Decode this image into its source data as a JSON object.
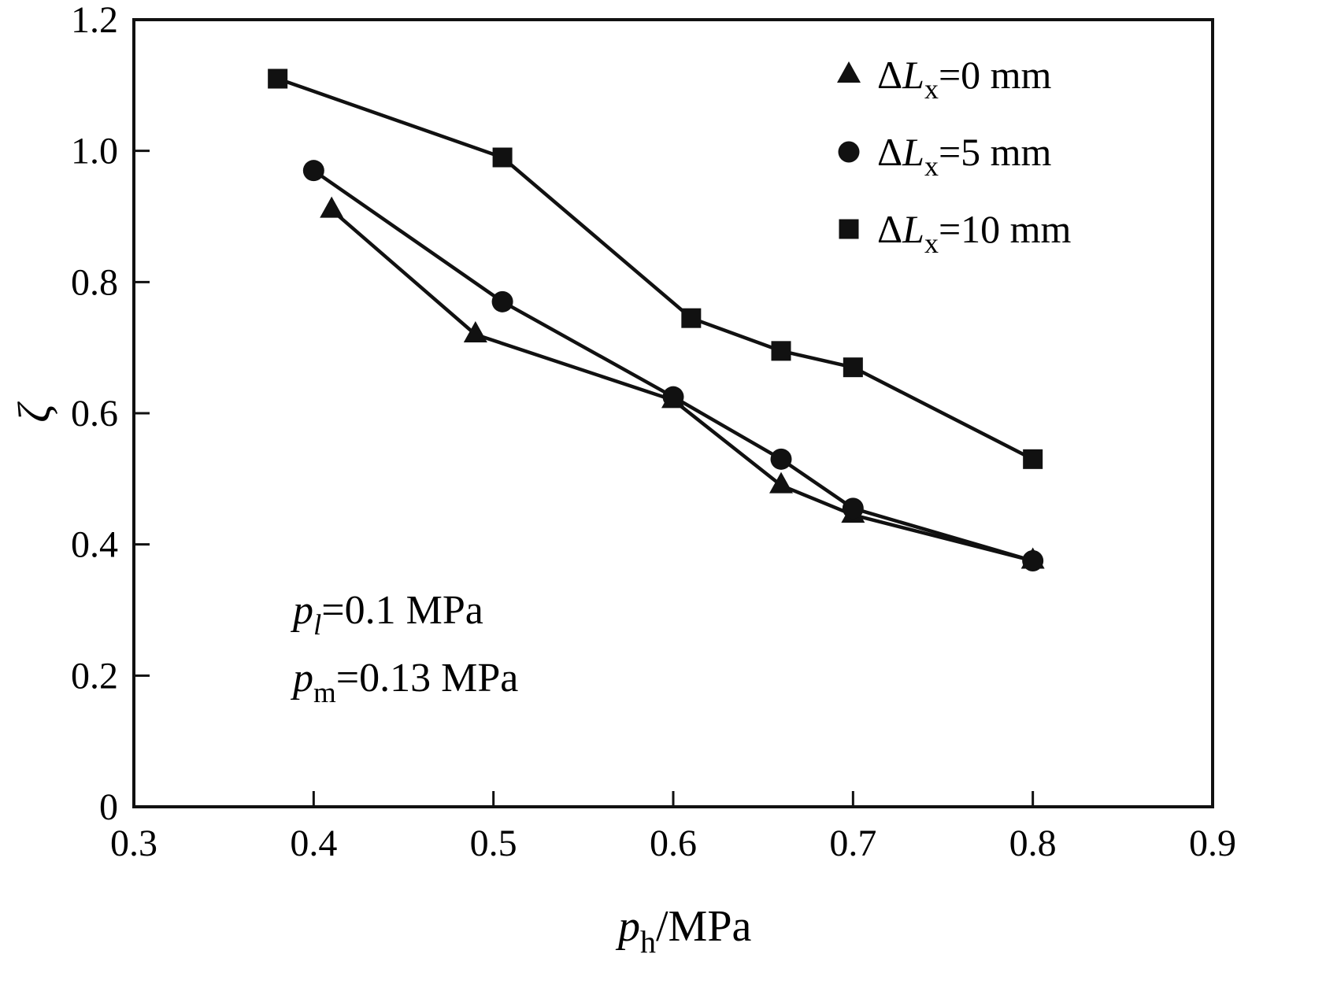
{
  "chart_data": {
    "type": "line",
    "title": "",
    "xlabel": {
      "pre": "p",
      "sub": "h",
      "post": "/MPa"
    },
    "ylabel": "ζ",
    "xlim": [
      0.3,
      0.9
    ],
    "ylim": [
      0,
      1.2
    ],
    "xticks": [
      0.3,
      0.4,
      0.5,
      0.6,
      0.7,
      0.8,
      0.9
    ],
    "yticks": [
      0,
      0.2,
      0.4,
      0.6,
      0.8,
      1.0,
      1.2
    ],
    "xtick_labels": [
      "0.3",
      "0.4",
      "0.5",
      "0.6",
      "0.7",
      "0.8",
      "0.9"
    ],
    "ytick_labels": [
      "0",
      "0.2",
      "0.4",
      "0.6",
      "0.8",
      "1.0",
      "1.2"
    ],
    "grid": false,
    "legend_position": "top-right-inside",
    "series": [
      {
        "name": "ΔLx=0 mm",
        "marker": "triangle",
        "label": {
          "pre": "Δ",
          "italic": "L",
          "sub": "x",
          "post": "=0 mm"
        },
        "points": [
          [
            0.41,
            0.91
          ],
          [
            0.49,
            0.72
          ],
          [
            0.6,
            0.62
          ],
          [
            0.66,
            0.49
          ],
          [
            0.7,
            0.445
          ],
          [
            0.8,
            0.375
          ]
        ]
      },
      {
        "name": "ΔLx=5 mm",
        "marker": "circle",
        "label": {
          "pre": "Δ",
          "italic": "L",
          "sub": "x",
          "post": "=5 mm"
        },
        "points": [
          [
            0.4,
            0.97
          ],
          [
            0.505,
            0.77
          ],
          [
            0.6,
            0.625
          ],
          [
            0.66,
            0.53
          ],
          [
            0.7,
            0.455
          ],
          [
            0.8,
            0.375
          ]
        ]
      },
      {
        "name": "ΔLx=10 mm",
        "marker": "square",
        "label": {
          "pre": "Δ",
          "italic": "L",
          "sub": "x",
          "post": "=10 mm"
        },
        "points": [
          [
            0.38,
            1.11
          ],
          [
            0.505,
            0.99
          ],
          [
            0.61,
            0.745
          ],
          [
            0.66,
            0.695
          ],
          [
            0.7,
            0.67
          ],
          [
            0.8,
            0.53
          ]
        ]
      }
    ],
    "annotations": [
      {
        "pre": "p",
        "sub": "l",
        "sub_italic": true,
        "post": "=0.1 MPa"
      },
      {
        "pre": "p",
        "sub": "m",
        "sub_italic": false,
        "post": "=0.13 MPa"
      }
    ],
    "colors": {
      "line": "#111111",
      "marker": "#111111",
      "text": "#000000",
      "background": "#ffffff"
    }
  }
}
